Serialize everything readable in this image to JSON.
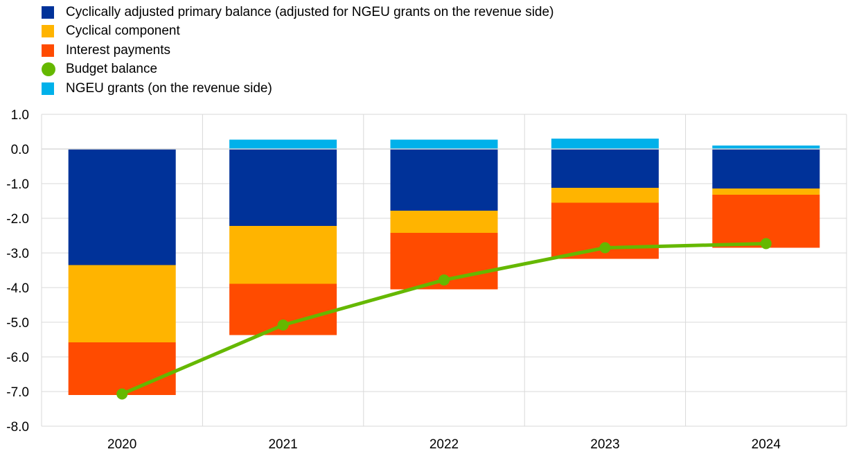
{
  "chart_data": {
    "type": "bar",
    "stacked": true,
    "categories": [
      "2020",
      "2021",
      "2022",
      "2023",
      "2024"
    ],
    "ylim": [
      -8.0,
      1.0
    ],
    "yticks": [
      "1.0",
      "0.0",
      "-1.0",
      "-2.0",
      "-3.0",
      "-4.0",
      "-5.0",
      "-6.0",
      "-7.0",
      "-8.0"
    ],
    "grid": true,
    "legend_position": "top-left",
    "series": [
      {
        "name": "Cyclically adjusted primary balance (adjusted for NGEU grants on the revenue side)",
        "kind": "bar",
        "color": "#003299",
        "values": [
          -3.35,
          -2.22,
          -1.78,
          -1.12,
          -1.14
        ]
      },
      {
        "name": "Cyclical component",
        "kind": "bar",
        "color": "#FFB400",
        "values": [
          -2.23,
          -1.67,
          -0.64,
          -0.43,
          -0.18
        ]
      },
      {
        "name": "Interest payments",
        "kind": "bar",
        "color": "#FF4B00",
        "values": [
          -1.52,
          -1.48,
          -1.63,
          -1.62,
          -1.53
        ]
      },
      {
        "name": "Budget balance",
        "kind": "line",
        "color": "#65B800",
        "values": [
          -7.07,
          -5.08,
          -3.78,
          -2.85,
          -2.73
        ]
      },
      {
        "name": "NGEU grants (on the revenue side)",
        "kind": "bar",
        "color": "#00B1EA",
        "values": [
          0.0,
          0.27,
          0.27,
          0.3,
          0.1
        ]
      }
    ]
  }
}
